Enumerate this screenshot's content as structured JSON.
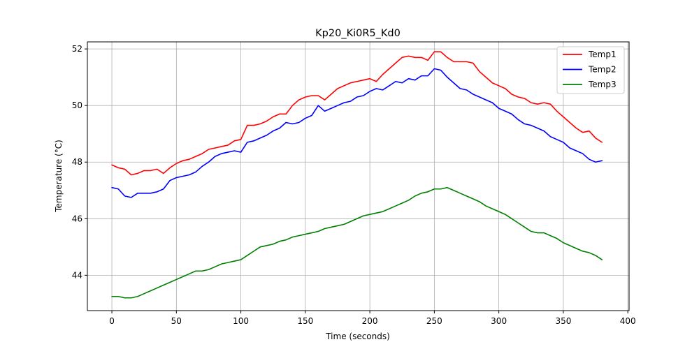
{
  "chart_data": {
    "type": "line",
    "title": "Kp20_Ki0R5_Kd0",
    "xlabel": "Time (seconds)",
    "ylabel": "Temperature (°C)",
    "xlim": [
      -19,
      401
    ],
    "ylim": [
      42.75,
      52.25
    ],
    "xticks": [
      0,
      50,
      100,
      150,
      200,
      250,
      300,
      350,
      400
    ],
    "yticks": [
      44,
      46,
      48,
      50,
      52
    ],
    "grid": true,
    "legend_position": "top-right",
    "series": [
      {
        "name": "Temp1",
        "color": "#ff0000",
        "x": [
          0,
          5,
          10,
          15,
          20,
          25,
          30,
          35,
          40,
          45,
          50,
          55,
          60,
          65,
          70,
          75,
          80,
          85,
          90,
          95,
          100,
          105,
          110,
          115,
          120,
          125,
          130,
          135,
          140,
          145,
          150,
          155,
          160,
          165,
          170,
          175,
          180,
          185,
          190,
          195,
          200,
          205,
          210,
          215,
          220,
          225,
          230,
          235,
          240,
          245,
          250,
          255,
          260,
          265,
          270,
          275,
          280,
          285,
          290,
          295,
          300,
          305,
          310,
          315,
          320,
          325,
          330,
          335,
          340,
          345,
          350,
          355,
          360,
          365,
          370,
          375,
          380
        ],
        "y": [
          47.9,
          47.8,
          47.75,
          47.55,
          47.6,
          47.7,
          47.7,
          47.75,
          47.6,
          47.8,
          47.95,
          48.05,
          48.1,
          48.2,
          48.3,
          48.45,
          48.5,
          48.55,
          48.6,
          48.75,
          48.8,
          49.3,
          49.3,
          49.35,
          49.45,
          49.6,
          49.7,
          49.7,
          50.0,
          50.2,
          50.3,
          50.35,
          50.35,
          50.2,
          50.4,
          50.6,
          50.7,
          50.8,
          50.85,
          50.9,
          50.95,
          50.85,
          51.1,
          51.3,
          51.5,
          51.7,
          51.75,
          51.7,
          51.7,
          51.6,
          51.9,
          51.9,
          51.7,
          51.55,
          51.55,
          51.55,
          51.5,
          51.2,
          51.0,
          50.8,
          50.7,
          50.6,
          50.4,
          50.3,
          50.25,
          50.1,
          50.05,
          50.1,
          50.05,
          49.8,
          49.6,
          49.4,
          49.2,
          49.05,
          49.1,
          48.85,
          48.7
        ]
      },
      {
        "name": "Temp2",
        "color": "#0000ff",
        "x": [
          0,
          5,
          10,
          15,
          20,
          25,
          30,
          35,
          40,
          45,
          50,
          55,
          60,
          65,
          70,
          75,
          80,
          85,
          90,
          95,
          100,
          105,
          110,
          115,
          120,
          125,
          130,
          135,
          140,
          145,
          150,
          155,
          160,
          165,
          170,
          175,
          180,
          185,
          190,
          195,
          200,
          205,
          210,
          215,
          220,
          225,
          230,
          235,
          240,
          245,
          250,
          255,
          260,
          265,
          270,
          275,
          280,
          285,
          290,
          295,
          300,
          305,
          310,
          315,
          320,
          325,
          330,
          335,
          340,
          345,
          350,
          355,
          360,
          365,
          370,
          375,
          380
        ],
        "y": [
          47.1,
          47.05,
          46.8,
          46.75,
          46.9,
          46.9,
          46.9,
          46.95,
          47.05,
          47.35,
          47.45,
          47.5,
          47.55,
          47.65,
          47.85,
          48.0,
          48.2,
          48.3,
          48.35,
          48.4,
          48.35,
          48.7,
          48.75,
          48.85,
          48.95,
          49.1,
          49.2,
          49.4,
          49.35,
          49.4,
          49.55,
          49.65,
          50.0,
          49.8,
          49.9,
          50.0,
          50.1,
          50.15,
          50.3,
          50.35,
          50.5,
          50.6,
          50.55,
          50.7,
          50.85,
          50.8,
          50.95,
          50.9,
          51.05,
          51.05,
          51.3,
          51.25,
          51.0,
          50.8,
          50.6,
          50.55,
          50.4,
          50.3,
          50.2,
          50.1,
          49.9,
          49.8,
          49.7,
          49.5,
          49.35,
          49.3,
          49.2,
          49.1,
          48.9,
          48.8,
          48.7,
          48.5,
          48.4,
          48.3,
          48.1,
          48.0,
          48.05
        ]
      },
      {
        "name": "Temp3",
        "color": "#008000",
        "x": [
          0,
          5,
          10,
          15,
          20,
          25,
          30,
          35,
          40,
          45,
          50,
          55,
          60,
          65,
          70,
          75,
          80,
          85,
          90,
          95,
          100,
          105,
          110,
          115,
          120,
          125,
          130,
          135,
          140,
          145,
          150,
          155,
          160,
          165,
          170,
          175,
          180,
          185,
          190,
          195,
          200,
          205,
          210,
          215,
          220,
          225,
          230,
          235,
          240,
          245,
          250,
          255,
          260,
          265,
          270,
          275,
          280,
          285,
          290,
          295,
          300,
          305,
          310,
          315,
          320,
          325,
          330,
          335,
          340,
          345,
          350,
          355,
          360,
          365,
          370,
          375,
          380
        ],
        "y": [
          43.25,
          43.25,
          43.2,
          43.2,
          43.25,
          43.35,
          43.45,
          43.55,
          43.65,
          43.75,
          43.85,
          43.95,
          44.05,
          44.15,
          44.15,
          44.2,
          44.3,
          44.4,
          44.45,
          44.5,
          44.55,
          44.7,
          44.85,
          45.0,
          45.05,
          45.1,
          45.2,
          45.25,
          45.35,
          45.4,
          45.45,
          45.5,
          45.55,
          45.65,
          45.7,
          45.75,
          45.8,
          45.9,
          46.0,
          46.1,
          46.15,
          46.2,
          46.25,
          46.35,
          46.45,
          46.55,
          46.65,
          46.8,
          46.9,
          46.95,
          47.05,
          47.05,
          47.1,
          47.0,
          46.9,
          46.8,
          46.7,
          46.6,
          46.45,
          46.35,
          46.25,
          46.15,
          46.0,
          45.85,
          45.7,
          45.55,
          45.5,
          45.5,
          45.4,
          45.3,
          45.15,
          45.05,
          44.95,
          44.85,
          44.8,
          44.7,
          44.55
        ]
      }
    ]
  }
}
